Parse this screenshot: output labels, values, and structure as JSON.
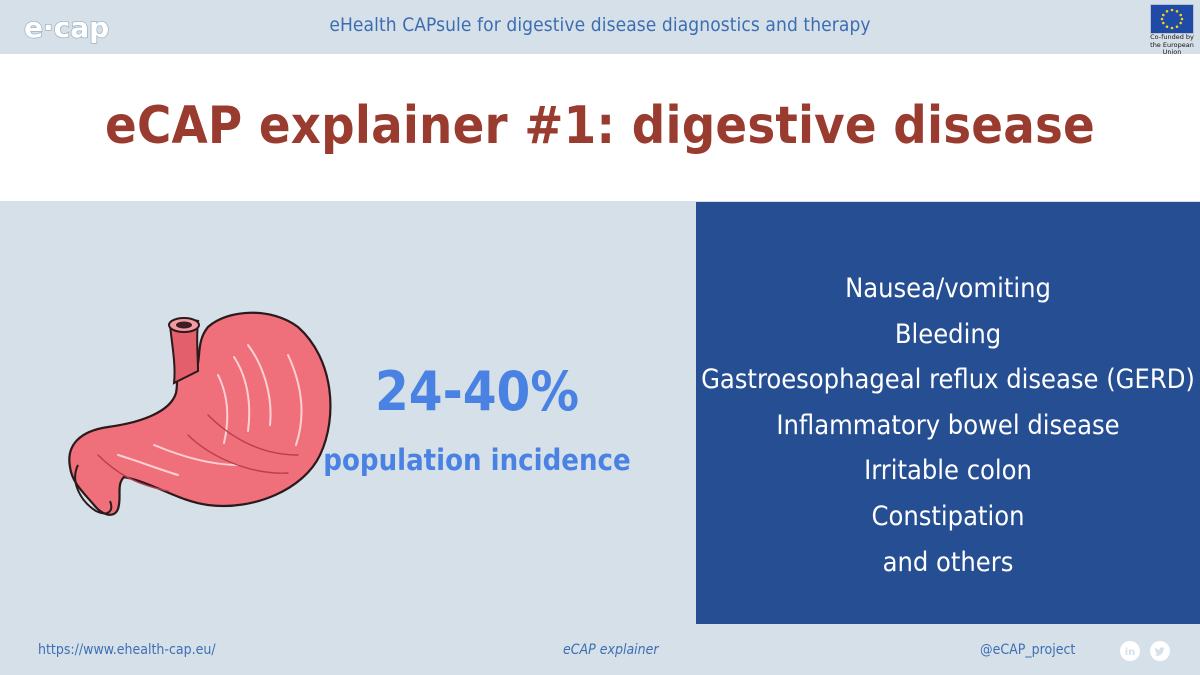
{
  "header": {
    "logo_text": "e·cap",
    "tagline": "eHealth CAPsule for digestive disease diagnostics and therapy",
    "eu_badge": "Co-funded by the European Union"
  },
  "title": "eCAP explainer #1: digestive disease",
  "stat": {
    "value": "24-40%",
    "label": "population incidence"
  },
  "conditions": [
    "Nausea/vomiting",
    "Bleeding",
    "Gastroesophageal reflux disease (GERD)",
    "Inflammatory bowel disease",
    "Irritable colon",
    "Constipation",
    "and others"
  ],
  "footer": {
    "url": "https://www.ehealth-cap.eu/",
    "series": "eCAP explainer",
    "handle": "@eCAP_project"
  },
  "icons": {
    "stomach": "stomach-illustration",
    "linkedin": "linkedin-icon",
    "twitter": "twitter-icon"
  },
  "colors": {
    "title": "#9a3b2f",
    "accent_blue": "#4a82e3",
    "panel_blue": "#264e93",
    "background": "#d6e0e8",
    "stomach_fill": "#ef6f7b"
  }
}
